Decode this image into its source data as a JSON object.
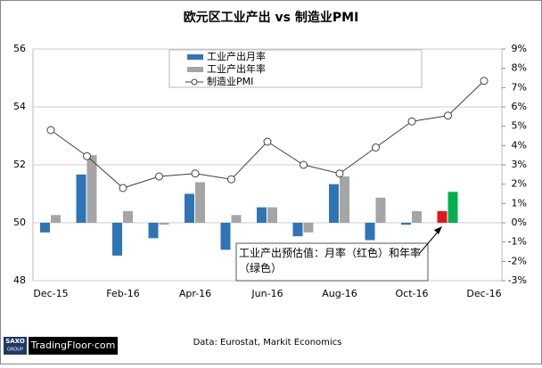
{
  "chart_data": {
    "type": "bar-line",
    "title": "欧元区工业产出 vs 制造业PMI",
    "categories": [
      "Dec-15",
      null,
      "Feb-16",
      null,
      "Apr-16",
      null,
      "Jun-16",
      null,
      "Aug-16",
      null,
      "Oct-16",
      null,
      "Dec-16"
    ],
    "series": [
      {
        "name": "工业产出月率",
        "type": "bar",
        "axis": "y2",
        "color": "#2e75b6",
        "values": [
          -0.5,
          2.5,
          -1.7,
          -0.8,
          1.5,
          -1.4,
          0.8,
          -0.7,
          2.0,
          -0.9,
          -0.1,
          0.6,
          null
        ],
        "point_colors": [
          null,
          null,
          null,
          null,
          null,
          null,
          null,
          null,
          null,
          null,
          null,
          "#e8141b",
          null
        ]
      },
      {
        "name": "工业产出年率",
        "type": "bar",
        "axis": "y2",
        "color": "#a5a5a5",
        "values": [
          0.4,
          3.5,
          0.6,
          -0.1,
          2.1,
          0.4,
          0.8,
          -0.5,
          2.4,
          1.3,
          0.6,
          1.6,
          null
        ],
        "point_colors": [
          null,
          null,
          null,
          null,
          null,
          null,
          null,
          null,
          null,
          null,
          null,
          "#00b050",
          null
        ]
      },
      {
        "name": "制造业PMI",
        "type": "line",
        "color": "#404040",
        "values": [
          53.2,
          52.3,
          51.2,
          51.6,
          51.7,
          51.5,
          52.8,
          52.0,
          51.7,
          52.6,
          53.5,
          53.7,
          54.9
        ]
      }
    ],
    "ylim": [
      48,
      56
    ],
    "yticks": [
      48,
      50,
      52,
      54,
      56
    ],
    "y2lim": [
      -3,
      9
    ],
    "y2ticks": [
      {
        "value": -3,
        "label": "-3%"
      },
      {
        "value": -2,
        "label": "-2%"
      },
      {
        "value": -1,
        "label": "-1%"
      },
      {
        "value": 0,
        "label": "0%"
      },
      {
        "value": 1,
        "label": "1%"
      },
      {
        "value": 2,
        "label": "2%"
      },
      {
        "value": 3,
        "label": "3%"
      },
      {
        "value": 4,
        "label": "4%"
      },
      {
        "value": 5,
        "label": "5%"
      },
      {
        "value": 6,
        "label": "6%"
      },
      {
        "value": 7,
        "label": "7%"
      },
      {
        "value": 8,
        "label": "8%"
      },
      {
        "value": 9,
        "label": "9%"
      }
    ],
    "grid": true,
    "annotation": "工业产出预估值：月率（红色）和年率（绿色）",
    "source": "Data: Eurostat, Markit Economics"
  },
  "footer": {
    "logo_mark": "SAXO",
    "logo_sub": "GROUP",
    "logo_text": "TradingFloor·com"
  }
}
